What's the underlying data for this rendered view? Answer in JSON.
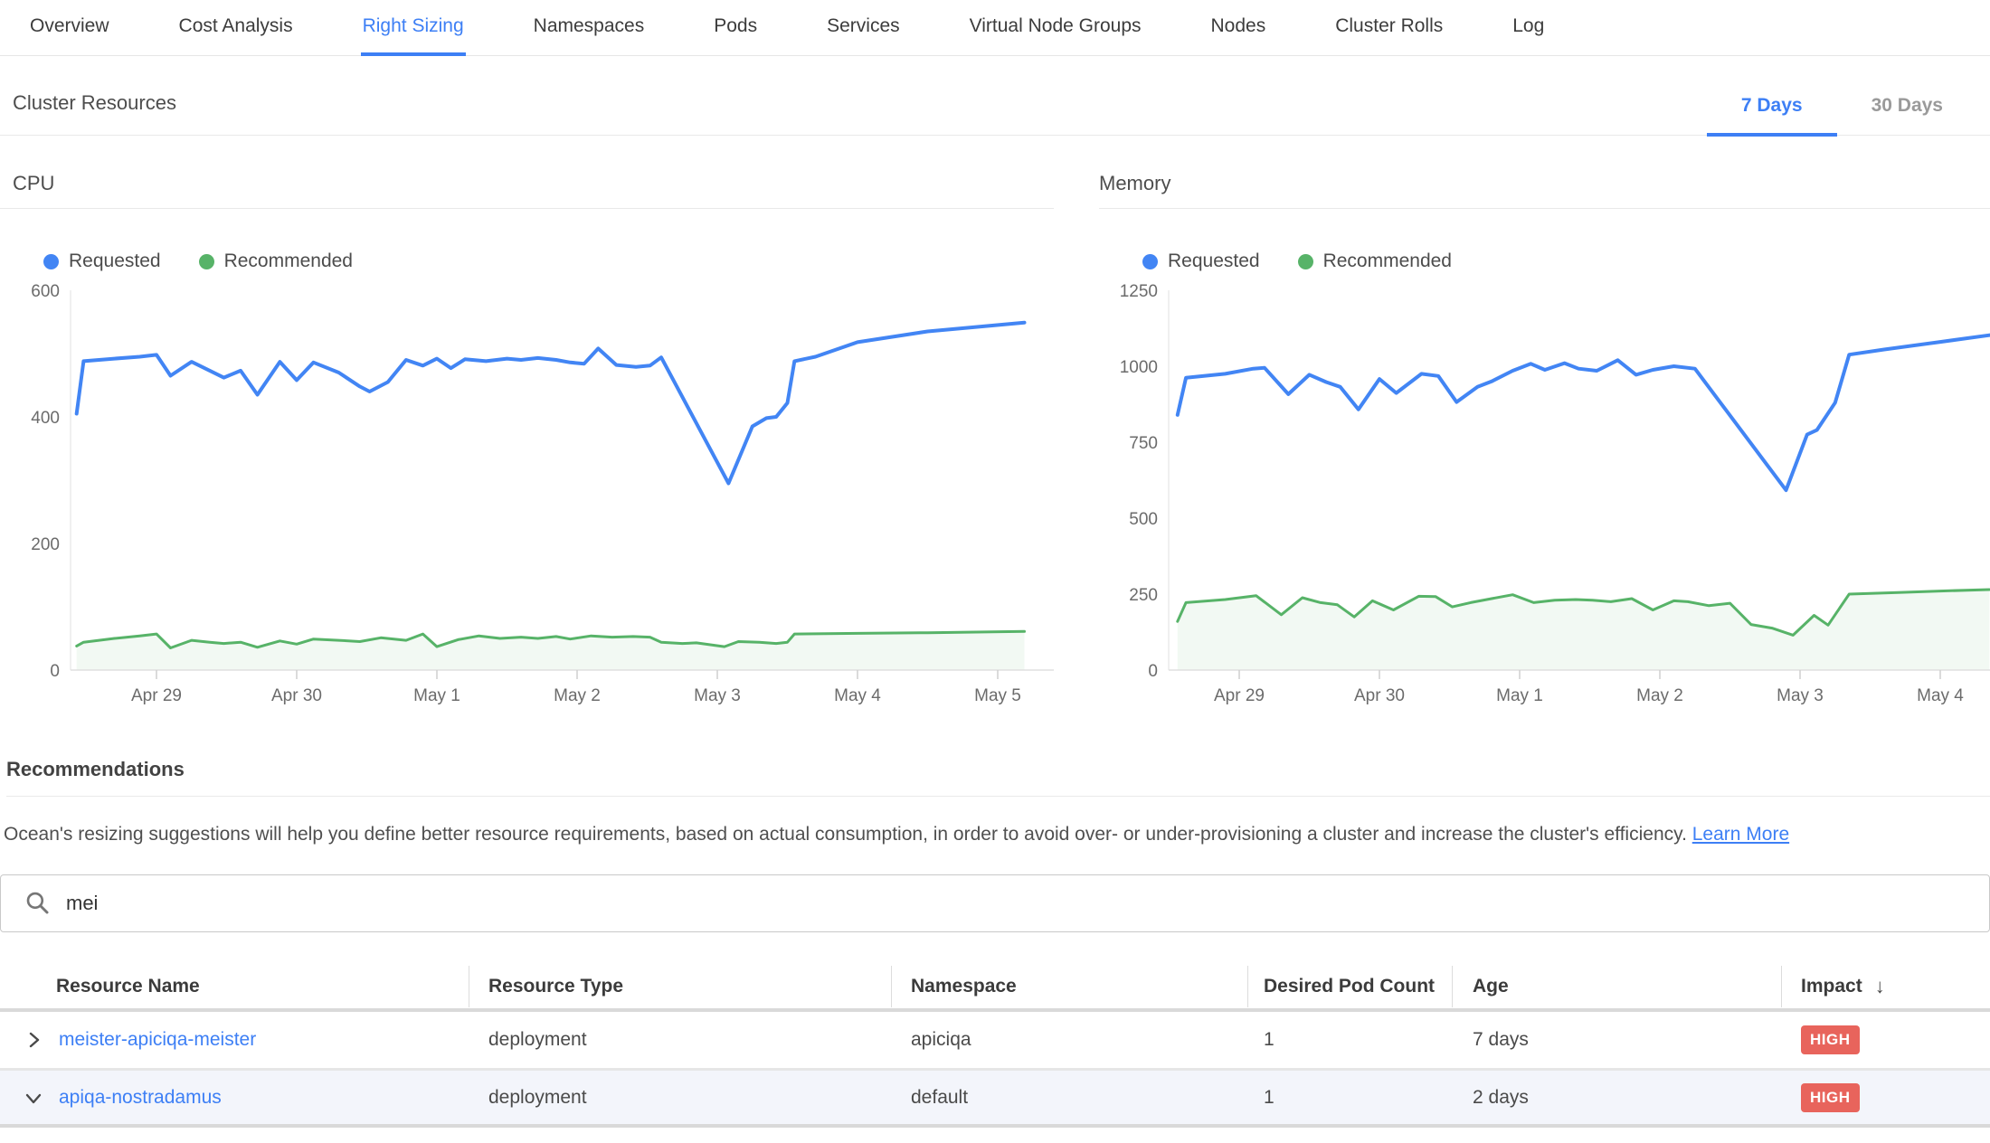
{
  "nav": {
    "tabs": [
      {
        "label": "Overview",
        "active": false
      },
      {
        "label": "Cost Analysis",
        "active": false
      },
      {
        "label": "Right Sizing",
        "active": true
      },
      {
        "label": "Namespaces",
        "active": false
      },
      {
        "label": "Pods",
        "active": false
      },
      {
        "label": "Services",
        "active": false
      },
      {
        "label": "Virtual Node Groups",
        "active": false
      },
      {
        "label": "Nodes",
        "active": false
      },
      {
        "label": "Cluster Rolls",
        "active": false
      },
      {
        "label": "Log",
        "active": false
      }
    ]
  },
  "header": {
    "title": "Cluster Resources",
    "range_tabs": [
      {
        "label": "7 Days",
        "active": true
      },
      {
        "label": "30 Days",
        "active": false
      }
    ]
  },
  "chart_data": [
    {
      "type": "line",
      "title": "CPU",
      "ylim": [
        0,
        600
      ],
      "yticks": [
        600,
        400,
        200,
        0
      ],
      "grid": false,
      "legend_position": "top-left",
      "xticks": [
        {
          "label": "Apr 29",
          "day": 0
        },
        {
          "label": "Apr 30",
          "day": 1
        },
        {
          "label": "May 1",
          "day": 2
        },
        {
          "label": "May 2",
          "day": 3
        },
        {
          "label": "May 3",
          "day": 4
        },
        {
          "label": "May 4",
          "day": 5
        },
        {
          "label": "May 5",
          "day": 6
        }
      ],
      "series": [
        {
          "name": "Requested",
          "color_key": "requested",
          "area": false,
          "points": [
            [
              -0.57,
              405
            ],
            [
              -0.52,
              488
            ],
            [
              -0.3,
              492
            ],
            [
              -0.12,
              495
            ],
            [
              0.0,
              498
            ],
            [
              0.1,
              465
            ],
            [
              0.25,
              487
            ],
            [
              0.38,
              473
            ],
            [
              0.48,
              462
            ],
            [
              0.6,
              473
            ],
            [
              0.72,
              435
            ],
            [
              0.88,
              487
            ],
            [
              1.0,
              458
            ],
            [
              1.12,
              486
            ],
            [
              1.3,
              470
            ],
            [
              1.45,
              448
            ],
            [
              1.52,
              440
            ],
            [
              1.65,
              455
            ],
            [
              1.78,
              490
            ],
            [
              1.9,
              481
            ],
            [
              2.0,
              492
            ],
            [
              2.1,
              477
            ],
            [
              2.2,
              491
            ],
            [
              2.35,
              488
            ],
            [
              2.5,
              492
            ],
            [
              2.6,
              490
            ],
            [
              2.72,
              493
            ],
            [
              2.85,
              490
            ],
            [
              2.95,
              486
            ],
            [
              3.05,
              484
            ],
            [
              3.15,
              508
            ],
            [
              3.28,
              482
            ],
            [
              3.42,
              479
            ],
            [
              3.52,
              481
            ],
            [
              3.6,
              494
            ],
            [
              4.08,
              295
            ],
            [
              4.25,
              385
            ],
            [
              4.35,
              398
            ],
            [
              4.42,
              400
            ],
            [
              4.5,
              422
            ],
            [
              4.55,
              488
            ],
            [
              4.7,
              495
            ],
            [
              5.0,
              518
            ],
            [
              5.5,
              535
            ],
            [
              6.19,
              549
            ]
          ]
        },
        {
          "name": "Recommended",
          "color_key": "recommended",
          "area": true,
          "points": [
            [
              -0.57,
              38
            ],
            [
              -0.52,
              44
            ],
            [
              -0.3,
              50
            ],
            [
              -0.12,
              54
            ],
            [
              0.0,
              57
            ],
            [
              0.1,
              35
            ],
            [
              0.25,
              47
            ],
            [
              0.38,
              44
            ],
            [
              0.48,
              42
            ],
            [
              0.6,
              44
            ],
            [
              0.72,
              36
            ],
            [
              0.88,
              46
            ],
            [
              1.0,
              41
            ],
            [
              1.12,
              49
            ],
            [
              1.3,
              47
            ],
            [
              1.45,
              45
            ],
            [
              1.6,
              51
            ],
            [
              1.78,
              47
            ],
            [
              1.9,
              57
            ],
            [
              2.0,
              37
            ],
            [
              2.15,
              48
            ],
            [
              2.3,
              54
            ],
            [
              2.45,
              50
            ],
            [
              2.6,
              52
            ],
            [
              2.72,
              50
            ],
            [
              2.85,
              53
            ],
            [
              2.95,
              49
            ],
            [
              3.1,
              54
            ],
            [
              3.25,
              52
            ],
            [
              3.4,
              53
            ],
            [
              3.52,
              52
            ],
            [
              3.6,
              44
            ],
            [
              3.75,
              42
            ],
            [
              3.85,
              43
            ],
            [
              3.95,
              40
            ],
            [
              4.05,
              37
            ],
            [
              4.15,
              45
            ],
            [
              4.3,
              44
            ],
            [
              4.42,
              42
            ],
            [
              4.5,
              44
            ],
            [
              4.55,
              57
            ],
            [
              5.0,
              58
            ],
            [
              5.5,
              59
            ],
            [
              6.19,
              61
            ]
          ]
        }
      ]
    },
    {
      "type": "line",
      "title": "Memory",
      "ylim": [
        0,
        1250
      ],
      "yticks": [
        1250,
        1000,
        750,
        500,
        250,
        0
      ],
      "grid": false,
      "legend_position": "top-left",
      "xticks": [
        {
          "label": "Apr 29",
          "day": 0
        },
        {
          "label": "Apr 30",
          "day": 1
        },
        {
          "label": "May 1",
          "day": 2
        },
        {
          "label": "May 2",
          "day": 3
        },
        {
          "label": "May 3",
          "day": 4
        },
        {
          "label": "May 4",
          "day": 5
        }
      ],
      "series": [
        {
          "name": "Requested",
          "color_key": "requested",
          "area": false,
          "points": [
            [
              -0.44,
              840
            ],
            [
              -0.38,
              962
            ],
            [
              -0.1,
              975
            ],
            [
              0.1,
              992
            ],
            [
              0.18,
              995
            ],
            [
              0.35,
              908
            ],
            [
              0.5,
              972
            ],
            [
              0.62,
              948
            ],
            [
              0.72,
              932
            ],
            [
              0.85,
              858
            ],
            [
              1.0,
              958
            ],
            [
              1.12,
              912
            ],
            [
              1.3,
              975
            ],
            [
              1.42,
              968
            ],
            [
              1.55,
              882
            ],
            [
              1.7,
              932
            ],
            [
              1.8,
              950
            ],
            [
              1.95,
              985
            ],
            [
              2.08,
              1008
            ],
            [
              2.18,
              988
            ],
            [
              2.32,
              1010
            ],
            [
              2.42,
              992
            ],
            [
              2.55,
              985
            ],
            [
              2.7,
              1020
            ],
            [
              2.83,
              972
            ],
            [
              2.95,
              988
            ],
            [
              3.1,
              1000
            ],
            [
              3.25,
              992
            ],
            [
              3.9,
              592
            ],
            [
              4.05,
              775
            ],
            [
              4.12,
              790
            ],
            [
              4.25,
              880
            ],
            [
              4.35,
              1038
            ],
            [
              4.6,
              1055
            ],
            [
              5.0,
              1080
            ],
            [
              5.35,
              1102
            ]
          ]
        },
        {
          "name": "Recommended",
          "color_key": "recommended",
          "area": true,
          "points": [
            [
              -0.44,
              160
            ],
            [
              -0.38,
              222
            ],
            [
              -0.1,
              232
            ],
            [
              0.12,
              245
            ],
            [
              0.3,
              182
            ],
            [
              0.45,
              238
            ],
            [
              0.58,
              222
            ],
            [
              0.7,
              215
            ],
            [
              0.82,
              175
            ],
            [
              0.95,
              228
            ],
            [
              1.1,
              198
            ],
            [
              1.28,
              243
            ],
            [
              1.4,
              242
            ],
            [
              1.52,
              208
            ],
            [
              1.65,
              222
            ],
            [
              1.8,
              235
            ],
            [
              1.95,
              248
            ],
            [
              2.1,
              222
            ],
            [
              2.25,
              230
            ],
            [
              2.4,
              232
            ],
            [
              2.52,
              230
            ],
            [
              2.65,
              225
            ],
            [
              2.8,
              235
            ],
            [
              2.95,
              198
            ],
            [
              3.1,
              228
            ],
            [
              3.2,
              225
            ],
            [
              3.35,
              212
            ],
            [
              3.5,
              220
            ],
            [
              3.65,
              150
            ],
            [
              3.8,
              138
            ],
            [
              3.95,
              115
            ],
            [
              4.1,
              180
            ],
            [
              4.2,
              148
            ],
            [
              4.35,
              250
            ],
            [
              4.7,
              255
            ],
            [
              5.0,
              260
            ],
            [
              5.35,
              265
            ]
          ]
        }
      ]
    }
  ],
  "recommendations": {
    "title": "Recommendations",
    "description": "Ocean's resizing suggestions will help you define better resource requirements, based on actual consumption, in order to avoid over- or under-provisioning a cluster and increase the cluster's efficiency.",
    "learn_more_label": "Learn More",
    "search": {
      "value": "mei",
      "icon": "search-icon"
    },
    "table": {
      "columns": [
        {
          "label": "Resource Name"
        },
        {
          "label": "Resource Type"
        },
        {
          "label": "Namespace"
        },
        {
          "label": "Desired Pod Count"
        },
        {
          "label": "Age"
        },
        {
          "label": "Impact",
          "sort": "desc"
        }
      ],
      "rows": [
        {
          "name": "meister-apiciqa-meister",
          "type": "deployment",
          "namespace": "apiciqa",
          "desired_pod_count": "1",
          "age": "7 days",
          "impact": "HIGH",
          "expanded": false
        },
        {
          "name": "apiqa-nostradamus",
          "type": "deployment",
          "namespace": "default",
          "desired_pod_count": "1",
          "age": "2 days",
          "impact": "HIGH",
          "expanded": true
        }
      ]
    }
  },
  "colors": {
    "accent": "#3d7ff5",
    "requested": "#4285f4",
    "recommended": "#57b368",
    "high_badge": "#e8645c",
    "axis_text": "#6b6b6b"
  }
}
